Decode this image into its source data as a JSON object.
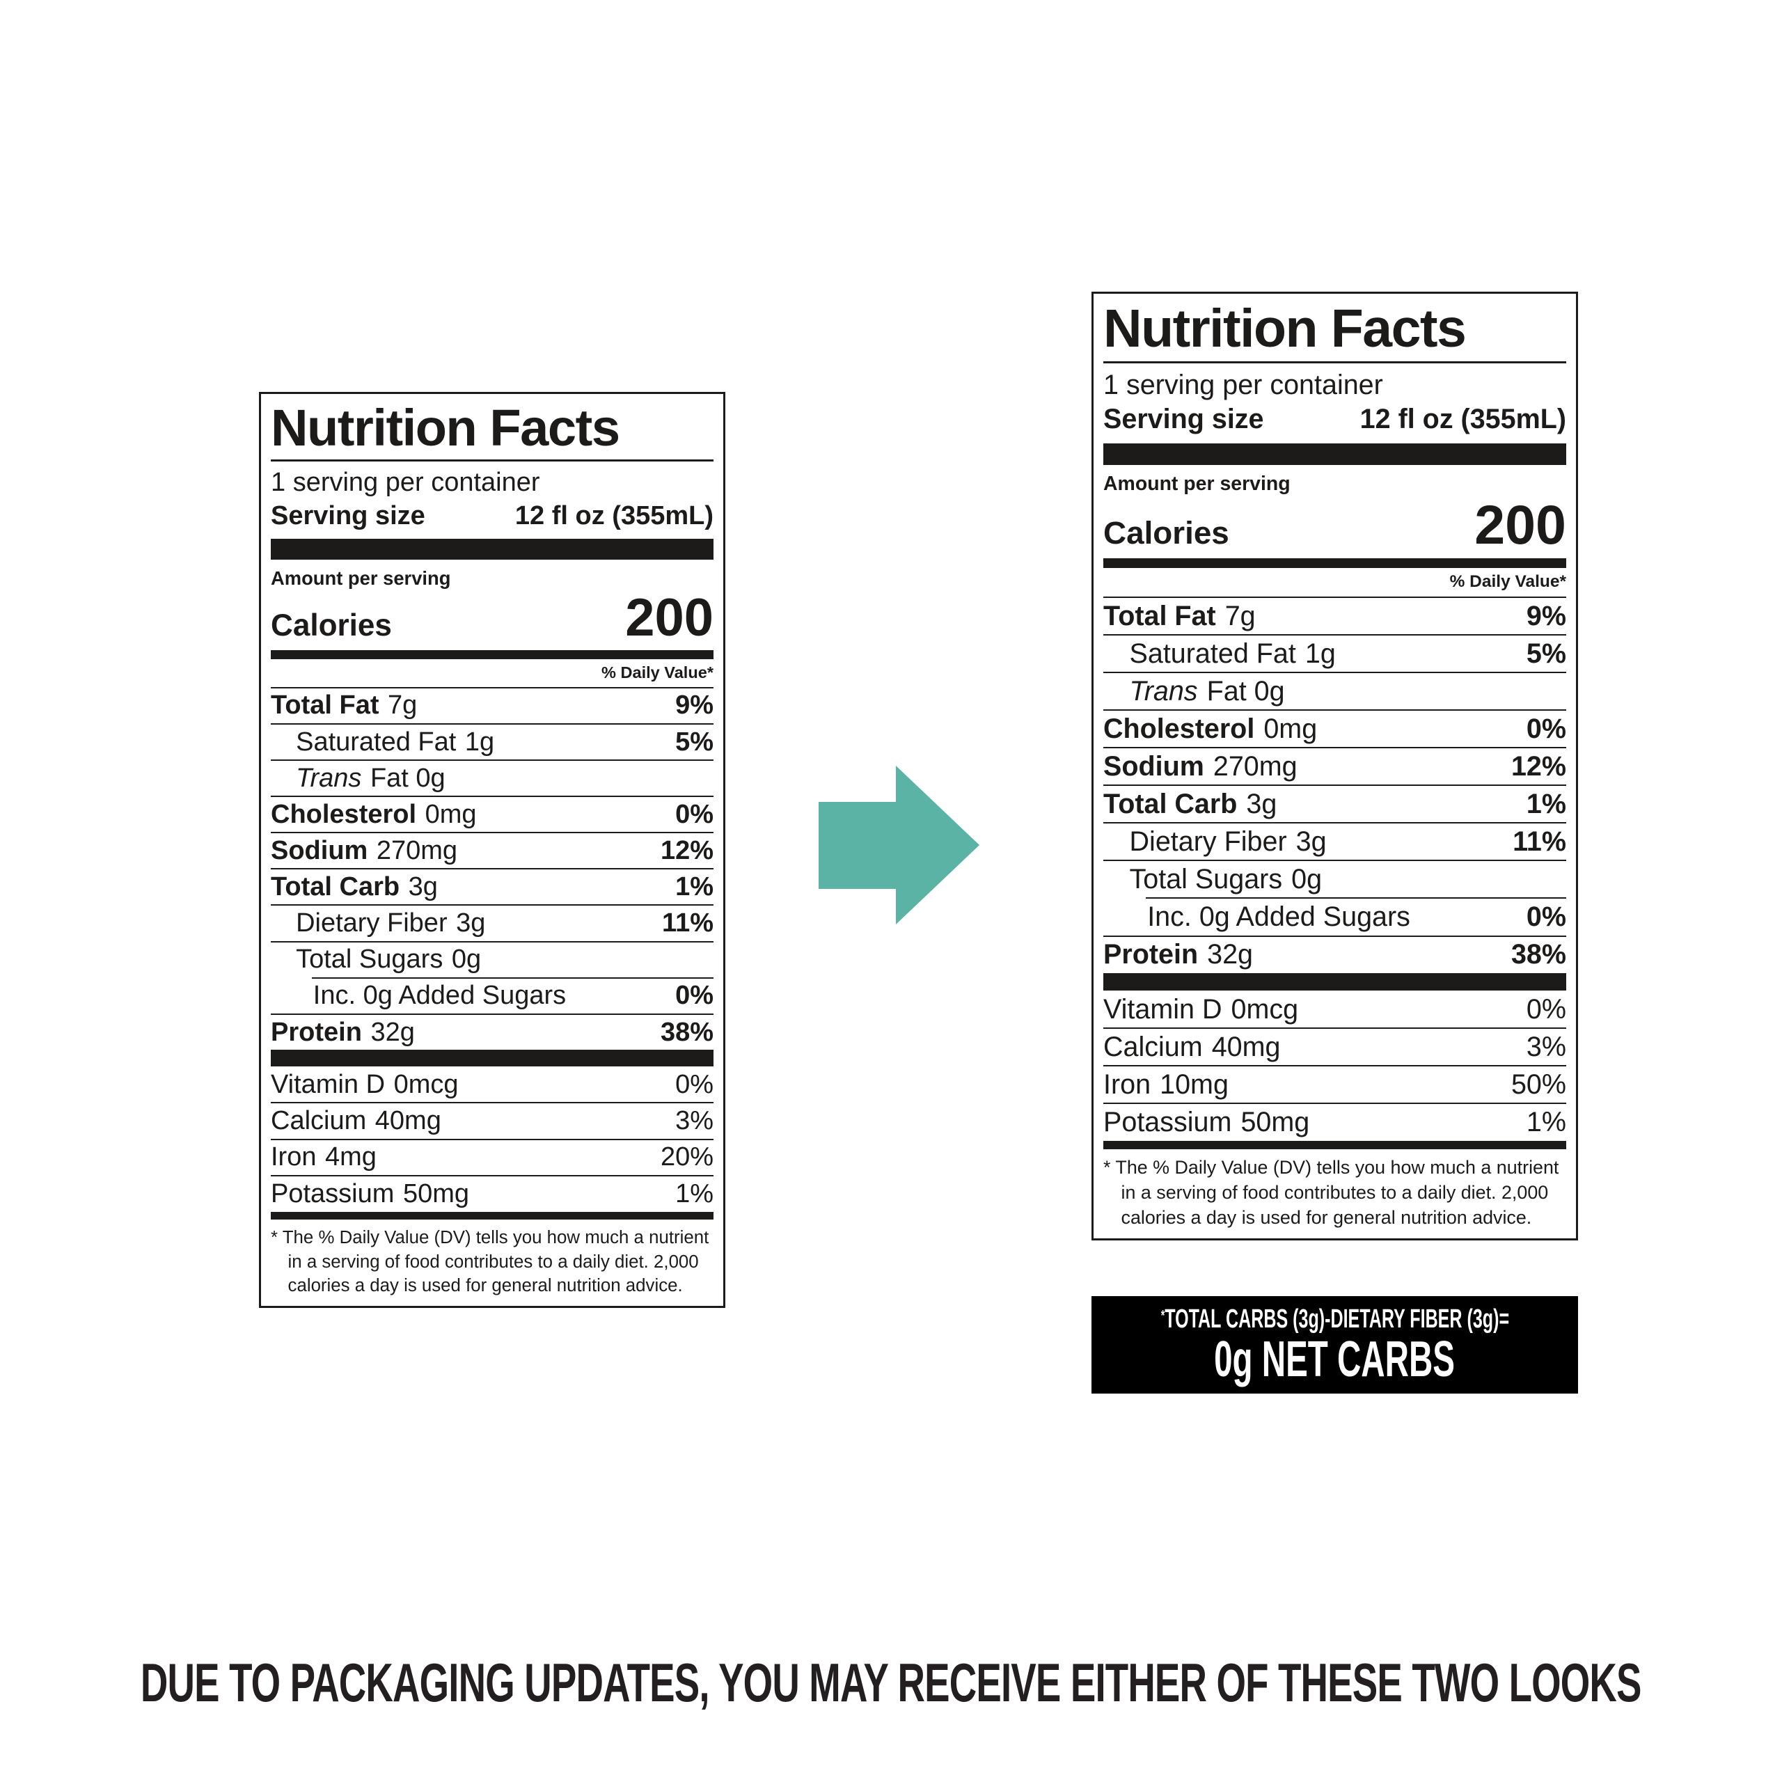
{
  "page": {
    "background": "#ffffff",
    "caption": "DUE TO PACKAGING UPDATES, YOU MAY RECEIVE EITHER OF THESE TWO LOOKS",
    "text_color": "#1d1b19"
  },
  "arrow": {
    "color": "#5ab3a5",
    "direction": "right"
  },
  "labels": [
    {
      "variant": "old",
      "title": "Nutrition Facts",
      "servings_per_container": "1 serving per container",
      "serving_size_label": "Serving size",
      "serving_size_value": "12 fl oz (355mL)",
      "amount_per_serving": "Amount per serving",
      "calories_label": "Calories",
      "calories_value": "200",
      "daily_value_header": "% Daily Value*",
      "rows": [
        {
          "name": "Total Fat",
          "amount": "7g",
          "dv": "9%",
          "bold": true,
          "indent": 0
        },
        {
          "name": "Saturated Fat",
          "amount": "1g",
          "dv": "5%",
          "indent": 1
        },
        {
          "name": "Trans",
          "amount": "Fat 0g",
          "dv": "",
          "italic": true,
          "indent": 1
        },
        {
          "name": "Cholesterol",
          "amount": "0mg",
          "dv": "0%",
          "bold": true,
          "indent": 0
        },
        {
          "name": "Sodium",
          "amount": "270mg",
          "dv": "12%",
          "bold": true,
          "indent": 0
        },
        {
          "name": "Total Carb",
          "amount": "3g",
          "dv": "1%",
          "bold": true,
          "indent": 0
        },
        {
          "name": "Dietary Fiber",
          "amount": "3g",
          "dv": "11%",
          "indent": 1
        },
        {
          "name": "Total Sugars",
          "amount": "0g",
          "dv": "",
          "indent": 1
        },
        {
          "name": "Inc. 0g Added Sugars",
          "amount": "",
          "dv": "0%",
          "indent": 2,
          "sep_indent": true
        },
        {
          "name": "Protein",
          "amount": "32g",
          "dv": "38%",
          "bold": true,
          "indent": 0
        }
      ],
      "micros": [
        {
          "name": "Vitamin D",
          "amount": "0mcg",
          "dv": "0%"
        },
        {
          "name": "Calcium",
          "amount": "40mg",
          "dv": "3%"
        },
        {
          "name": "Iron",
          "amount": "4mg",
          "dv": "20%"
        },
        {
          "name": "Potassium",
          "amount": "50mg",
          "dv": "1%"
        }
      ],
      "footnote": "* The % Daily Value (DV) tells you how much a nutrient in a serving of food contributes to a daily diet. 2,000 calories a day is used for general nutrition advice."
    },
    {
      "variant": "new",
      "title": "Nutrition Facts",
      "servings_per_container": "1 serving per container",
      "serving_size_label": "Serving size",
      "serving_size_value": "12 fl oz (355mL)",
      "amount_per_serving": "Amount per serving",
      "calories_label": "Calories",
      "calories_value": "200",
      "daily_value_header": "% Daily Value*",
      "rows": [
        {
          "name": "Total Fat",
          "amount": "7g",
          "dv": "9%",
          "bold": true,
          "indent": 0
        },
        {
          "name": "Saturated Fat",
          "amount": "1g",
          "dv": "5%",
          "indent": 1
        },
        {
          "name": "Trans",
          "amount": "Fat 0g",
          "dv": "",
          "italic": true,
          "indent": 1
        },
        {
          "name": "Cholesterol",
          "amount": "0mg",
          "dv": "0%",
          "bold": true,
          "indent": 0
        },
        {
          "name": "Sodium",
          "amount": "270mg",
          "dv": "12%",
          "bold": true,
          "indent": 0
        },
        {
          "name": "Total Carb",
          "amount": "3g",
          "dv": "1%",
          "bold": true,
          "indent": 0
        },
        {
          "name": "Dietary Fiber",
          "amount": "3g",
          "dv": "11%",
          "indent": 1
        },
        {
          "name": "Total Sugars",
          "amount": "0g",
          "dv": "",
          "indent": 1
        },
        {
          "name": "Inc. 0g Added Sugars",
          "amount": "",
          "dv": "0%",
          "indent": 2,
          "sep_indent": true
        },
        {
          "name": "Protein",
          "amount": "32g",
          "dv": "38%",
          "bold": true,
          "indent": 0
        }
      ],
      "micros": [
        {
          "name": "Vitamin D",
          "amount": "0mcg",
          "dv": "0%"
        },
        {
          "name": "Calcium",
          "amount": "40mg",
          "dv": "3%"
        },
        {
          "name": "Iron",
          "amount": "10mg",
          "dv": "50%"
        },
        {
          "name": "Potassium",
          "amount": "50mg",
          "dv": "1%"
        }
      ],
      "footnote": "* The % Daily Value (DV) tells you how much a nutrient in a serving of food contributes to a daily diet. 2,000 calories a day is used for general nutrition advice."
    }
  ],
  "net_carbs": {
    "star": "*",
    "line1": "TOTAL CARBS (3g)-DIETARY FIBER (3g)=",
    "line2": "0g NET CARBS",
    "background": "#000000",
    "text_color": "#ffffff"
  }
}
